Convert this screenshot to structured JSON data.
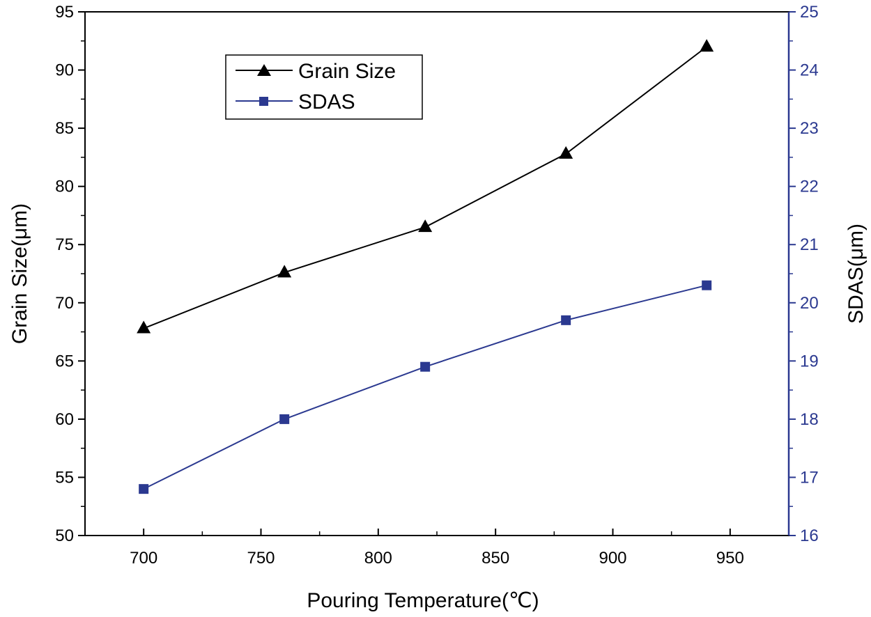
{
  "chart_data": {
    "type": "line",
    "x": [
      700,
      760,
      820,
      880,
      940
    ],
    "xlabel": "Pouring Temperature(℃)",
    "xlim": [
      675,
      975
    ],
    "xticks": [
      700,
      750,
      800,
      850,
      900,
      950
    ],
    "y_left": {
      "label": "Grain Size(μm)",
      "lim": [
        50,
        95
      ],
      "ticks": [
        50,
        55,
        60,
        65,
        70,
        75,
        80,
        85,
        90,
        95
      ]
    },
    "y_right": {
      "label": "SDAS(μm)",
      "lim": [
        16,
        25
      ],
      "ticks": [
        16,
        17,
        18,
        19,
        20,
        21,
        22,
        23,
        24,
        25
      ]
    },
    "series": [
      {
        "name": "Grain Size",
        "axis": "left",
        "marker": "triangle",
        "color": "#000000",
        "values": [
          67.8,
          72.6,
          76.5,
          82.8,
          92.0
        ]
      },
      {
        "name": "SDAS",
        "axis": "right",
        "marker": "square",
        "color": "#2b3990",
        "values": [
          16.8,
          18.0,
          18.9,
          19.7,
          20.3
        ]
      }
    ],
    "legend": {
      "position": "top-left"
    }
  }
}
